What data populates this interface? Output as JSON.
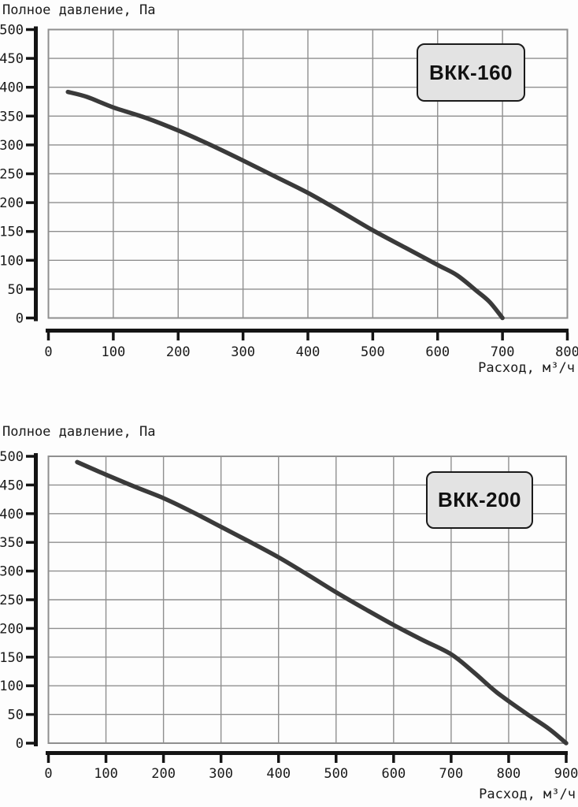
{
  "chart_data": [
    {
      "type": "line",
      "title": "Полное давление, Па",
      "xlabel": "Расход, м³/ч",
      "model_label": "ВКК-160",
      "xlim": [
        0,
        800
      ],
      "ylim": [
        0,
        500
      ],
      "xticks": [
        0,
        100,
        200,
        300,
        400,
        500,
        600,
        700,
        800
      ],
      "yticks": [
        0,
        50,
        100,
        150,
        200,
        250,
        300,
        350,
        400,
        450,
        500
      ],
      "grid": true,
      "legend_position": "top-right-box",
      "series": [
        {
          "name": "ВКК-160",
          "points": [
            [
              30,
              392
            ],
            [
              60,
              383
            ],
            [
              100,
              365
            ],
            [
              150,
              347
            ],
            [
              200,
              325
            ],
            [
              250,
              300
            ],
            [
              300,
              273
            ],
            [
              350,
              245
            ],
            [
              400,
              217
            ],
            [
              450,
              185
            ],
            [
              500,
              152
            ],
            [
              550,
              122
            ],
            [
              600,
              92
            ],
            [
              630,
              74
            ],
            [
              660,
              47
            ],
            [
              680,
              28
            ],
            [
              700,
              0
            ]
          ]
        }
      ]
    },
    {
      "type": "line",
      "title": "Полное давление, Па",
      "xlabel": "Расход, м³/ч",
      "model_label": "ВКК-200",
      "xlim": [
        0,
        900
      ],
      "ylim": [
        0,
        500
      ],
      "xticks": [
        0,
        100,
        200,
        300,
        400,
        500,
        600,
        700,
        800,
        900
      ],
      "yticks": [
        0,
        50,
        100,
        150,
        200,
        250,
        300,
        350,
        400,
        450,
        500
      ],
      "grid": true,
      "legend_position": "top-right-box",
      "series": [
        {
          "name": "ВКК-200",
          "points": [
            [
              50,
              490
            ],
            [
              100,
              468
            ],
            [
              150,
              447
            ],
            [
              200,
              427
            ],
            [
              250,
              403
            ],
            [
              300,
              377
            ],
            [
              350,
              351
            ],
            [
              400,
              324
            ],
            [
              450,
              294
            ],
            [
              500,
              263
            ],
            [
              550,
              234
            ],
            [
              600,
              206
            ],
            [
              650,
              180
            ],
            [
              700,
              155
            ],
            [
              740,
              123
            ],
            [
              780,
              88
            ],
            [
              830,
              52
            ],
            [
              870,
              25
            ],
            [
              900,
              0
            ]
          ]
        }
      ]
    }
  ],
  "colors": {
    "curve": "#3a3a3a",
    "grid": "#8f8f8f",
    "axis": "#141414",
    "box_fill": "#e3e3e3",
    "box_border": "#1a1a1a",
    "background": "#fdfdfd",
    "text": "#1a1a1a"
  }
}
